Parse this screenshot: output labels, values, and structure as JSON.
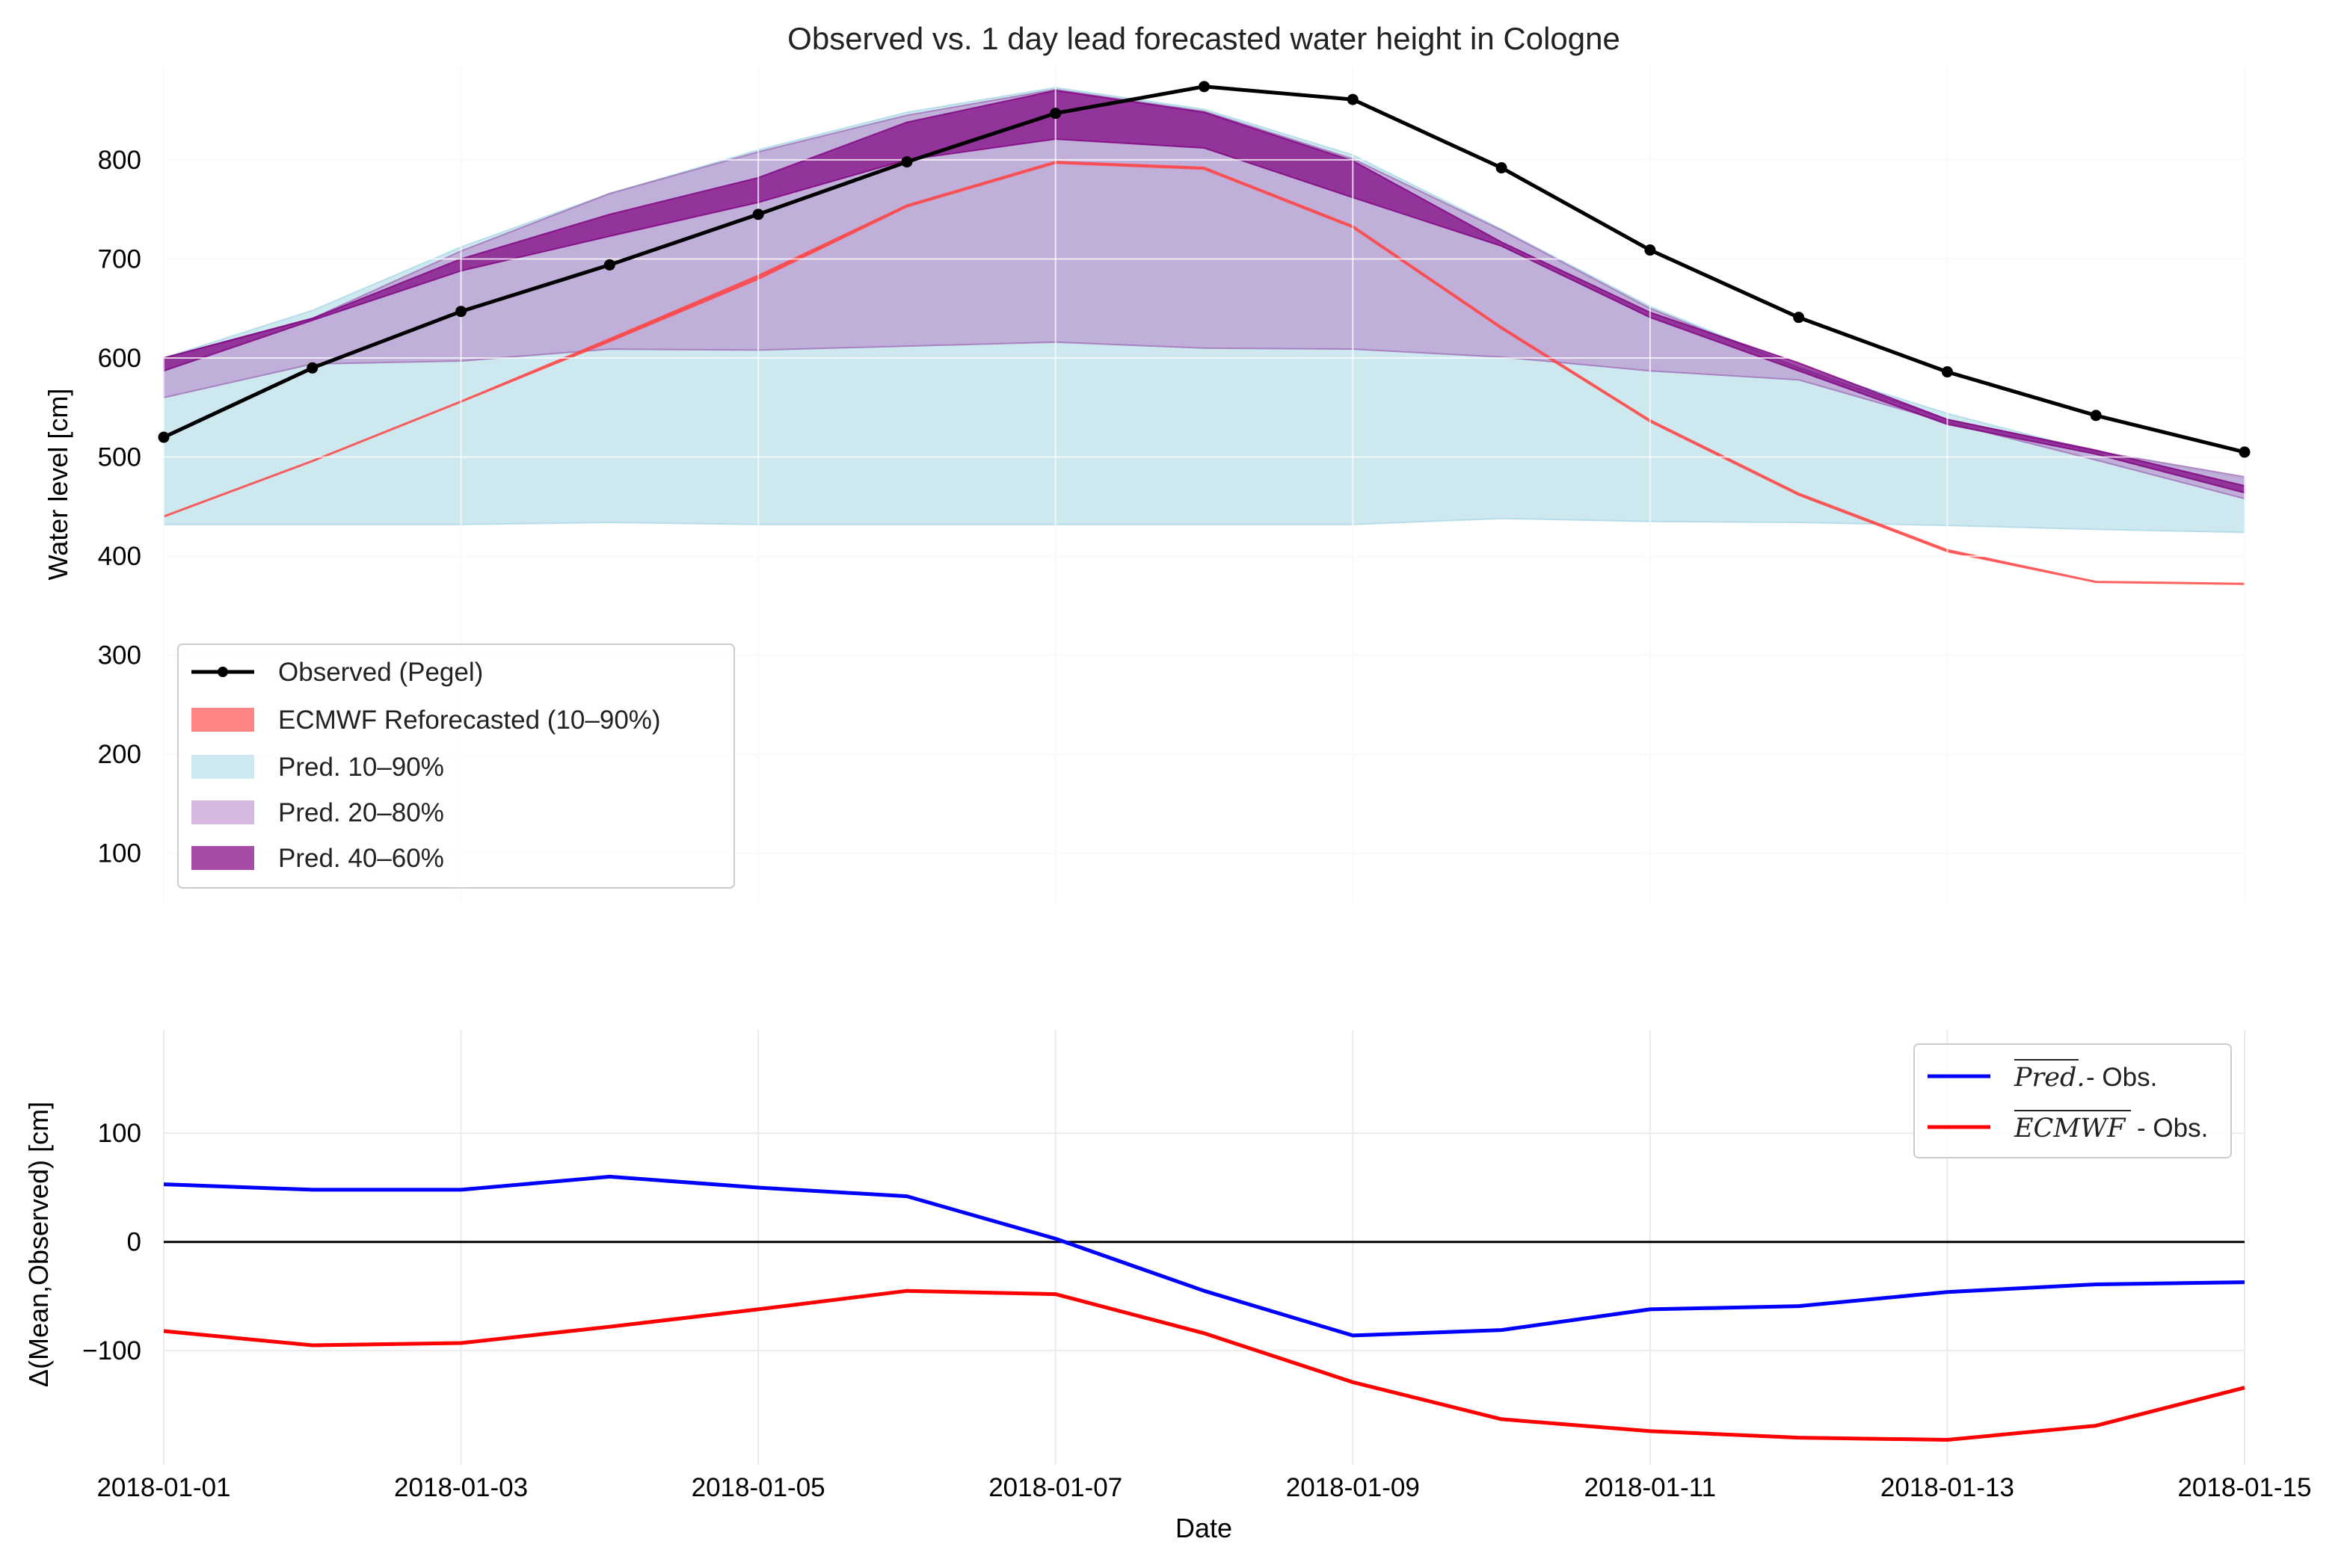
{
  "chart_data": [
    {
      "type": "area",
      "title": "Observed vs. 1 day lead forecasted water height in Cologne",
      "xlabel": "",
      "ylabel": "Water level [cm]",
      "ylim": [
        50,
        895
      ],
      "x": [
        "2018-01-01",
        "2018-01-02",
        "2018-01-03",
        "2018-01-04",
        "2018-01-05",
        "2018-01-06",
        "2018-01-07",
        "2018-01-08",
        "2018-01-09",
        "2018-01-10",
        "2018-01-11",
        "2018-01-12",
        "2018-01-13",
        "2018-01-14",
        "2018-01-15"
      ],
      "yticks": [
        100,
        200,
        300,
        400,
        500,
        600,
        700,
        800
      ],
      "grid": true,
      "legend_position": "lower-left",
      "legend": [
        "Observed (Pegel)",
        "ECMWF Reforecasted (10–90%)",
        "Pred. 10–90%",
        "Pred. 20–80%",
        "Pred. 40–60%"
      ],
      "series": [
        {
          "name": "Observed (Pegel)",
          "kind": "line",
          "color": "#000000",
          "values": [
            520,
            590,
            647,
            694,
            745,
            798,
            847,
            874,
            861,
            792,
            709,
            641,
            586,
            542,
            505
          ]
        },
        {
          "name": "ECMWF Reforecasted (10–90%)",
          "kind": "band",
          "color": "#ff4444",
          "low": [
            440,
            496,
            556,
            617,
            680,
            753,
            797,
            791,
            732,
            630,
            536,
            462,
            405,
            374,
            372
          ],
          "high": [
            440,
            496,
            556,
            619,
            683,
            754,
            798,
            792,
            733,
            631,
            537,
            463,
            406,
            374,
            372
          ]
        },
        {
          "name": "Pred. 10–90%",
          "kind": "band",
          "color": "#add8e6",
          "low": [
            432,
            432,
            432,
            434,
            432,
            432,
            432,
            432,
            432,
            438,
            435,
            434,
            431,
            427,
            424
          ],
          "high": [
            600,
            648,
            712,
            766,
            810,
            848,
            873,
            851,
            805,
            730,
            652,
            591,
            544,
            505,
            478
          ]
        },
        {
          "name": "Pred. 20–80%",
          "kind": "band",
          "color": "#b57fc6",
          "low": [
            560,
            594,
            597,
            609,
            608,
            612,
            616,
            610,
            609,
            601,
            587,
            578,
            535,
            497,
            458
          ],
          "high": [
            600,
            640,
            708,
            766,
            808,
            845,
            871,
            849,
            801,
            729,
            650,
            590,
            538,
            506,
            480
          ]
        },
        {
          "name": "Pred. 40–60%",
          "kind": "band",
          "color": "#800080",
          "low": [
            587,
            638,
            688,
            723,
            757,
            800,
            821,
            812,
            762,
            713,
            641,
            587,
            533,
            503,
            464
          ],
          "high": [
            600,
            640,
            700,
            745,
            782,
            838,
            870,
            848,
            799,
            717,
            646,
            595,
            538,
            507,
            471
          ]
        }
      ]
    },
    {
      "type": "line",
      "title": "",
      "xlabel": "Date",
      "ylabel": "Δ(Mean,Observed) [cm]",
      "ylim": [
        -205,
        195
      ],
      "x": [
        "2018-01-01",
        "2018-01-02",
        "2018-01-03",
        "2018-01-04",
        "2018-01-05",
        "2018-01-06",
        "2018-01-07",
        "2018-01-08",
        "2018-01-09",
        "2018-01-10",
        "2018-01-11",
        "2018-01-12",
        "2018-01-13",
        "2018-01-14",
        "2018-01-15"
      ],
      "xticks": [
        "2018-01-01",
        "2018-01-03",
        "2018-01-05",
        "2018-01-07",
        "2018-01-09",
        "2018-01-11",
        "2018-01-13",
        "2018-01-15"
      ],
      "yticks": [
        -100,
        0,
        100
      ],
      "ytick_labels": [
        "−100",
        "0",
        "100"
      ],
      "grid": true,
      "legend_position": "top-right",
      "reference_line": 0,
      "series": [
        {
          "name": "Pred.",
          "name_suffix": " - Obs.",
          "color": "#0000ff",
          "values": [
            53,
            48,
            48,
            60,
            50,
            42,
            3,
            -45,
            -86,
            -81,
            -62,
            -59,
            -46,
            -39,
            -37
          ]
        },
        {
          "name": "ECMWF",
          "name_suffix": " - Obs.",
          "color": "#ff0000",
          "values": [
            -82,
            -95,
            -93,
            -78,
            -62,
            -45,
            -48,
            -84,
            -129,
            -163,
            -174,
            -180,
            -182,
            -169,
            -134
          ]
        }
      ]
    }
  ]
}
